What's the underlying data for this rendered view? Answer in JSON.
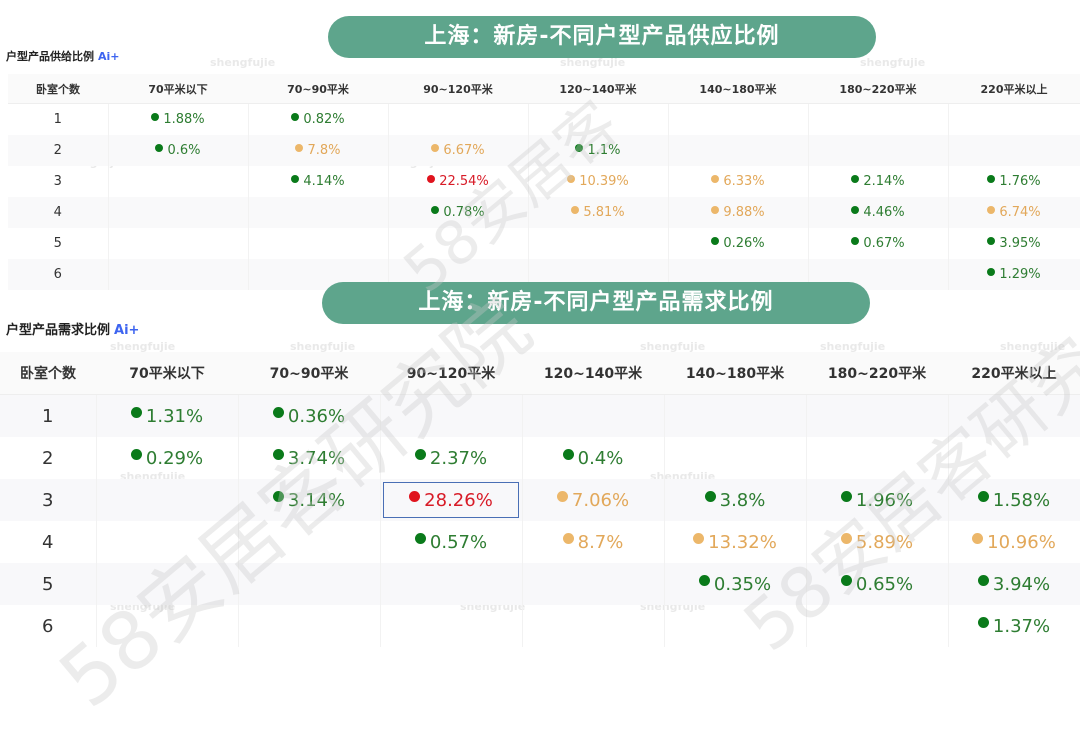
{
  "banner_top": "上海：新房-不同户型产品供应比例",
  "banner_bottom": "上海：新房-不同户型产品需求比例",
  "supply": {
    "label": "户型产品供给比例",
    "ai": "Ai+",
    "headers": [
      "卧室个数",
      "70平米以下",
      "70~90平米",
      "90~120平米",
      "120~140平米",
      "140~180平米",
      "180~220平米",
      "220平米以上"
    ],
    "rows": [
      {
        "room": "1",
        "cells": [
          {
            "v": "1.88%",
            "c": "green"
          },
          {
            "v": "0.82%",
            "c": "green"
          },
          null,
          null,
          null,
          null,
          null
        ]
      },
      {
        "room": "2",
        "cells": [
          {
            "v": "0.6%",
            "c": "green"
          },
          {
            "v": "7.8%",
            "c": "orange"
          },
          {
            "v": "6.67%",
            "c": "orange"
          },
          {
            "v": "1.1%",
            "c": "green"
          },
          null,
          null,
          null
        ]
      },
      {
        "room": "3",
        "cells": [
          null,
          {
            "v": "4.14%",
            "c": "green"
          },
          {
            "v": "22.54%",
            "c": "red"
          },
          {
            "v": "10.39%",
            "c": "orange"
          },
          {
            "v": "6.33%",
            "c": "orange"
          },
          {
            "v": "2.14%",
            "c": "green"
          },
          {
            "v": "1.76%",
            "c": "green"
          }
        ]
      },
      {
        "room": "4",
        "cells": [
          null,
          null,
          {
            "v": "0.78%",
            "c": "green"
          },
          {
            "v": "5.81%",
            "c": "orange"
          },
          {
            "v": "9.88%",
            "c": "orange"
          },
          {
            "v": "4.46%",
            "c": "green"
          },
          {
            "v": "6.74%",
            "c": "orange"
          }
        ]
      },
      {
        "room": "5",
        "cells": [
          null,
          null,
          null,
          null,
          {
            "v": "0.26%",
            "c": "green"
          },
          {
            "v": "0.67%",
            "c": "green"
          },
          {
            "v": "3.95%",
            "c": "green"
          }
        ]
      },
      {
        "room": "6",
        "cells": [
          null,
          null,
          null,
          null,
          null,
          null,
          {
            "v": "1.29%",
            "c": "green"
          }
        ]
      }
    ]
  },
  "demand": {
    "label": "户型产品需求比例",
    "ai": "Ai+",
    "headers": [
      "卧室个数",
      "70平米以下",
      "70~90平米",
      "90~120平米",
      "120~140平米",
      "140~180平米",
      "180~220平米",
      "220平米以上"
    ],
    "rows": [
      {
        "room": "1",
        "cells": [
          {
            "v": "1.31%",
            "c": "green"
          },
          {
            "v": "0.36%",
            "c": "green"
          },
          null,
          null,
          null,
          null,
          null
        ]
      },
      {
        "room": "2",
        "cells": [
          {
            "v": "0.29%",
            "c": "green"
          },
          {
            "v": "3.74%",
            "c": "green"
          },
          {
            "v": "2.37%",
            "c": "green"
          },
          {
            "v": "0.4%",
            "c": "green"
          },
          null,
          null,
          null
        ]
      },
      {
        "room": "3",
        "cells": [
          null,
          {
            "v": "3.14%",
            "c": "green"
          },
          {
            "v": "28.26%",
            "c": "red",
            "hl": true
          },
          {
            "v": "7.06%",
            "c": "orange"
          },
          {
            "v": "3.8%",
            "c": "green"
          },
          {
            "v": "1.96%",
            "c": "green"
          },
          {
            "v": "1.58%",
            "c": "green"
          }
        ]
      },
      {
        "room": "4",
        "cells": [
          null,
          null,
          {
            "v": "0.57%",
            "c": "green"
          },
          {
            "v": "8.7%",
            "c": "orange"
          },
          {
            "v": "13.32%",
            "c": "orange"
          },
          {
            "v": "5.89%",
            "c": "orange"
          },
          {
            "v": "10.96%",
            "c": "orange"
          }
        ]
      },
      {
        "room": "5",
        "cells": [
          null,
          null,
          null,
          null,
          {
            "v": "0.35%",
            "c": "green"
          },
          {
            "v": "0.65%",
            "c": "green"
          },
          {
            "v": "3.94%",
            "c": "green"
          }
        ]
      },
      {
        "room": "6",
        "cells": [
          null,
          null,
          null,
          null,
          null,
          null,
          {
            "v": "1.37%",
            "c": "green"
          }
        ]
      }
    ]
  },
  "watermark_small": "shengfujie",
  "watermark_big": "58安居客研究院"
}
